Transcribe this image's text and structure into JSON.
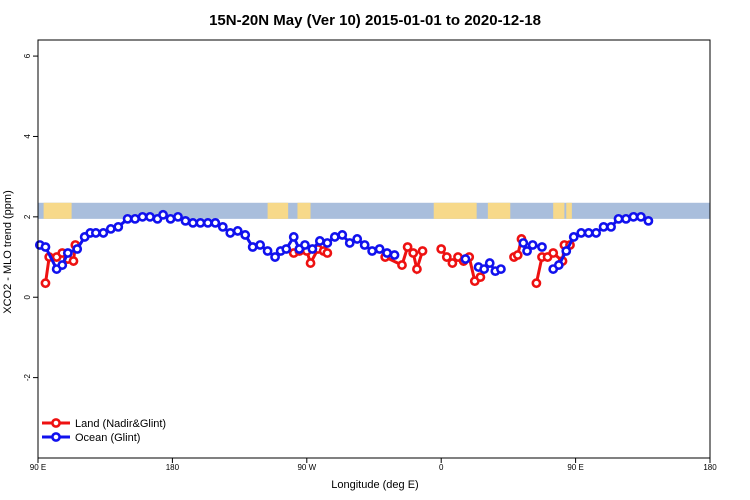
{
  "chart_data": {
    "type": "line",
    "title": "15N-20N May (Ver 10)   2015-01-01 to 2020-12-18",
    "xlabel": "Longitude (deg E)",
    "ylabel": "XCO2 - MLO trend (ppm)",
    "xlim": [
      90,
      450
    ],
    "ylim": [
      -4,
      6.4
    ],
    "x_ticks": [
      90,
      180,
      270,
      360,
      450
    ],
    "x_tick_labels": [
      "90 E",
      "180",
      "90 W",
      "0",
      "90 E",
      "180"
    ],
    "x_tick_positions": [
      90,
      162,
      234,
      306,
      378,
      450
    ],
    "y_ticks": [
      -2,
      0,
      2,
      4,
      6
    ],
    "y_tick_labels": [
      "-2",
      "0",
      "2",
      "4",
      "6"
    ],
    "map_strip": {
      "y_range": [
        1.95,
        2.35
      ],
      "ocean_color": "#a9bedc",
      "land_color": "#f7d98a",
      "land_segments": [
        [
          93,
          108
        ],
        [
          213,
          224
        ],
        [
          229,
          236
        ],
        [
          302,
          325
        ],
        [
          331,
          343
        ],
        [
          366,
          372
        ],
        [
          373,
          376
        ]
      ]
    },
    "legend": {
      "position": "bottom-left",
      "items": [
        {
          "label": "Land (Nadir&Glint)",
          "color": "#ee1111"
        },
        {
          "label": "Ocean (Glint)",
          "color": "#1111ee"
        }
      ]
    },
    "series": [
      {
        "name": "Land (Nadir&Glint)",
        "color": "#ee1111",
        "segments": [
          [
            [
              94,
              0.35
            ],
            [
              96,
              1.0
            ],
            [
              100,
              1.0
            ],
            [
              103,
              1.1
            ],
            [
              106,
              0.95
            ],
            [
              109,
              0.9
            ],
            [
              110,
              1.3
            ]
          ],
          [
            [
              227,
              1.1
            ],
            [
              230,
              1.15
            ],
            [
              232,
              1.2
            ],
            [
              234,
              1.15
            ],
            [
              236,
              0.85
            ],
            [
              240,
              1.2
            ],
            [
              243,
              1.15
            ],
            [
              245,
              1.1
            ]
          ],
          [
            [
              276,
              1.0
            ],
            [
              285,
              0.8
            ],
            [
              288,
              1.25
            ],
            [
              291,
              1.1
            ],
            [
              293,
              0.7
            ],
            [
              296,
              1.15
            ]
          ],
          [
            [
              306,
              1.2
            ],
            [
              309,
              1.0
            ],
            [
              312,
              0.85
            ],
            [
              315,
              1.0
            ],
            [
              318,
              0.9
            ],
            [
              321,
              1.0
            ],
            [
              324,
              0.4
            ],
            [
              327,
              0.5
            ]
          ],
          [
            [
              345,
              1.0
            ],
            [
              347,
              1.05
            ],
            [
              349,
              1.45
            ]
          ],
          [
            [
              357,
              0.35
            ],
            [
              360,
              1.0
            ],
            [
              363,
              1.0
            ],
            [
              366,
              1.1
            ],
            [
              371,
              0.9
            ],
            [
              372,
              1.3
            ],
            [
              375,
              1.3
            ]
          ]
        ]
      },
      {
        "name": "Ocean (Glint)",
        "color": "#1111ee",
        "segments": [
          [
            [
              91,
              1.3
            ],
            [
              94,
              1.25
            ],
            [
              100,
              0.7
            ],
            [
              103,
              0.8
            ],
            [
              106,
              1.1
            ],
            [
              111,
              1.2
            ],
            [
              115,
              1.5
            ],
            [
              118,
              1.6
            ],
            [
              121,
              1.6
            ],
            [
              125,
              1.6
            ],
            [
              129,
              1.7
            ],
            [
              133,
              1.75
            ],
            [
              138,
              1.95
            ],
            [
              142,
              1.95
            ],
            [
              146,
              2.0
            ],
            [
              150,
              2.0
            ],
            [
              154,
              1.95
            ],
            [
              157,
              2.05
            ],
            [
              161,
              1.95
            ],
            [
              165,
              2.0
            ],
            [
              169,
              1.9
            ],
            [
              173,
              1.85
            ],
            [
              177,
              1.85
            ],
            [
              181,
              1.85
            ],
            [
              185,
              1.85
            ],
            [
              189,
              1.75
            ],
            [
              193,
              1.6
            ],
            [
              197,
              1.65
            ],
            [
              201,
              1.55
            ],
            [
              205,
              1.25
            ],
            [
              209,
              1.3
            ],
            [
              213,
              1.15
            ],
            [
              217,
              1.0
            ],
            [
              220,
              1.15
            ],
            [
              223,
              1.2
            ],
            [
              227,
              1.5
            ],
            [
              230,
              1.2
            ],
            [
              233,
              1.3
            ],
            [
              237,
              1.2
            ],
            [
              241,
              1.4
            ],
            [
              245,
              1.35
            ],
            [
              249,
              1.5
            ],
            [
              253,
              1.55
            ],
            [
              257,
              1.35
            ],
            [
              261,
              1.45
            ],
            [
              265,
              1.3
            ],
            [
              269,
              1.15
            ],
            [
              273,
              1.2
            ],
            [
              277,
              1.1
            ],
            [
              281,
              1.05
            ]
          ],
          [
            [
              319,
              0.95
            ]
          ],
          [
            [
              326,
              0.75
            ],
            [
              329,
              0.7
            ],
            [
              332,
              0.85
            ],
            [
              335,
              0.65
            ],
            [
              338,
              0.7
            ]
          ],
          [
            [
              350,
              1.35
            ],
            [
              352,
              1.15
            ],
            [
              355,
              1.3
            ],
            [
              360,
              1.25
            ]
          ],
          [
            [
              366,
              0.7
            ],
            [
              369,
              0.8
            ],
            [
              373,
              1.15
            ],
            [
              377,
              1.5
            ],
            [
              381,
              1.6
            ],
            [
              385,
              1.6
            ],
            [
              389,
              1.6
            ],
            [
              393,
              1.75
            ],
            [
              397,
              1.75
            ],
            [
              401,
              1.95
            ],
            [
              405,
              1.95
            ],
            [
              409,
              2.0
            ],
            [
              413,
              2.0
            ],
            [
              417,
              1.9
            ]
          ]
        ]
      }
    ]
  }
}
